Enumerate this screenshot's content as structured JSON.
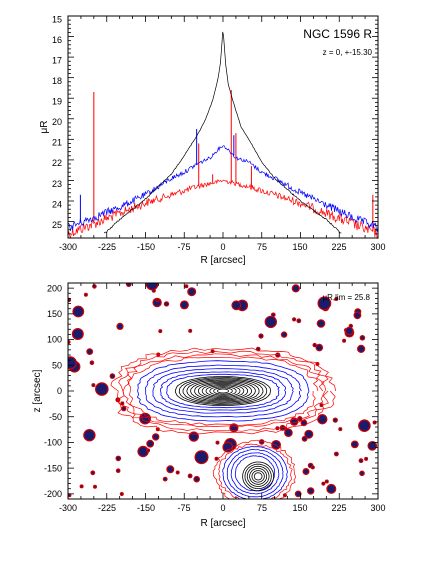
{
  "chart_data": [
    {
      "type": "line",
      "title": "NGC 1596 R",
      "subtitle": "z = 0, +-15.30",
      "xlabel": "R [arcsec]",
      "ylabel": "μR",
      "xlim": [
        -300,
        300
      ],
      "ylim": [
        25.8,
        15
      ],
      "y_inverted": true,
      "xticks": [
        "-300",
        "-225",
        "-150",
        "-75",
        "0",
        "75",
        "150",
        "225",
        "300"
      ],
      "yticks": [
        "15",
        "16",
        "17",
        "18",
        "19",
        "20",
        "21",
        "22",
        "23",
        "24",
        "25"
      ],
      "series": [
        {
          "color": "#000000",
          "x": [
            -230,
            -200,
            -150,
            -100,
            -70,
            -50,
            -35,
            -20,
            -10,
            -5,
            0,
            5,
            10,
            20,
            35,
            50,
            75,
            100,
            150,
            200,
            230
          ],
          "y": [
            25.6,
            24.9,
            23.9,
            22.7,
            21.6,
            20.8,
            20.1,
            19.1,
            18.1,
            17.3,
            15.6,
            17.3,
            18.3,
            19.2,
            20.4,
            21.0,
            22.1,
            22.9,
            24.0,
            24.9,
            25.6
          ]
        },
        {
          "color": "#0000ff",
          "x": [
            -300,
            -250,
            -200,
            -150,
            -100,
            -75,
            -50,
            -25,
            -10,
            0,
            10,
            25,
            50,
            75,
            100,
            150,
            200,
            250,
            300
          ],
          "y": [
            25.3,
            24.8,
            24.3,
            23.7,
            22.9,
            22.6,
            22.2,
            21.9,
            21.5,
            21.3,
            21.5,
            21.9,
            22.1,
            22.6,
            22.9,
            23.6,
            24.2,
            24.8,
            25.3
          ],
          "spikes": [
            {
              "x": -276,
              "y": 23.7
            },
            {
              "x": -51,
              "y": 20.5
            },
            {
              "x": 21,
              "y": 20.8
            }
          ]
        },
        {
          "color": "#ff0000",
          "x": [
            -300,
            -250,
            -200,
            -150,
            -100,
            -50,
            0,
            50,
            100,
            150,
            200,
            250,
            300
          ],
          "y": [
            25.6,
            25.1,
            24.6,
            24.1,
            23.7,
            23.3,
            23.0,
            23.3,
            23.7,
            24.1,
            24.6,
            25.1,
            25.6
          ],
          "spikes": [
            {
              "x": -250,
              "y": 18.7
            },
            {
              "x": -47,
              "y": 21.2
            },
            {
              "x": -20,
              "y": 22.7
            },
            {
              "x": 16,
              "y": 18.6
            },
            {
              "x": 25,
              "y": 20.7
            },
            {
              "x": 55,
              "y": 22.3
            },
            {
              "x": 290,
              "y": 23.7
            }
          ]
        }
      ]
    },
    {
      "type": "contour",
      "xlabel": "R [arcsec]",
      "ylabel": "z [arcsec]",
      "xlim": [
        -300,
        300
      ],
      "ylim": [
        -210,
        210
      ],
      "xticks": [
        "-300",
        "-225",
        "-150",
        "-75",
        "0",
        "75",
        "150",
        "225",
        "300"
      ],
      "yticks": [
        "200",
        "150",
        "100",
        "50",
        "0",
        "-50",
        "-100",
        "-150",
        "-200"
      ],
      "annotation": "μR,lim = 25.8",
      "galaxies": [
        {
          "name": "NGC 1596",
          "cx": 0,
          "cy": 0
        },
        {
          "cx": 62,
          "cy": -160
        }
      ]
    }
  ]
}
